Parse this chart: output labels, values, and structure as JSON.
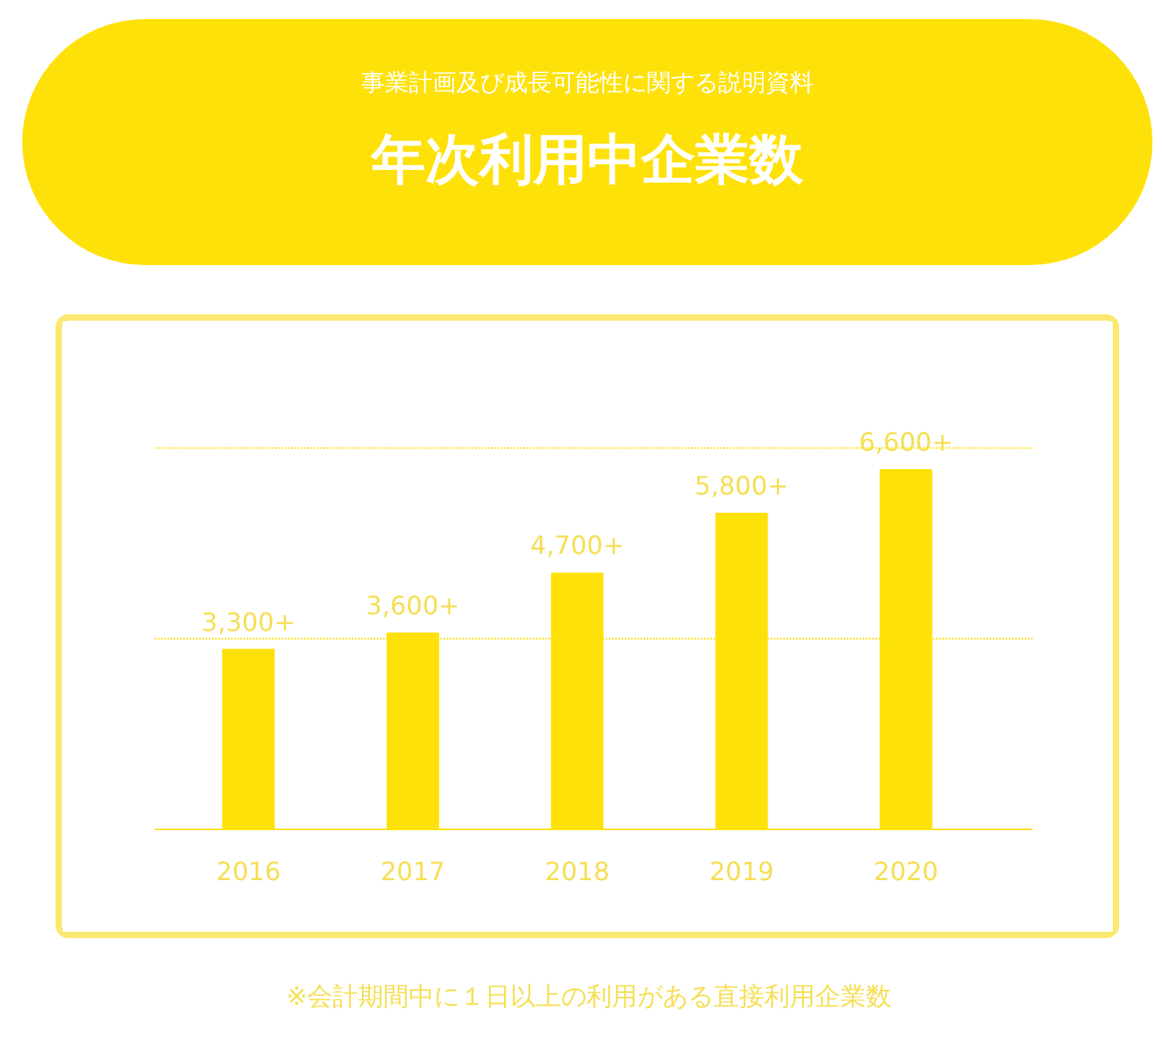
{
  "chart_data": {
    "type": "bar",
    "title": "年次利用中企業数",
    "subtitle": "事業計画及び成長可能性に関する説明資料",
    "annotations": [
      "※会計期間中に１日以上の利用がある直接利用企業数"
    ],
    "categories": [
      "2016",
      "2017",
      "2018",
      "2019",
      "2020"
    ],
    "values": [
      3300,
      3600,
      4700,
      5800,
      6600
    ],
    "value_labels": [
      "3,300+",
      "3,600+",
      "4,700+",
      "5,800+",
      "6,600+"
    ],
    "color": "#ffe10a",
    "ref_lines": [
      {
        "axis": "y",
        "value": 3500,
        "color": "#ffe10a",
        "line_style": "dotted"
      },
      {
        "axis": "y",
        "value": 7000,
        "color": "#ffe10a",
        "line_style": "dotted"
      }
    ],
    "tick_labels": "x"
  }
}
